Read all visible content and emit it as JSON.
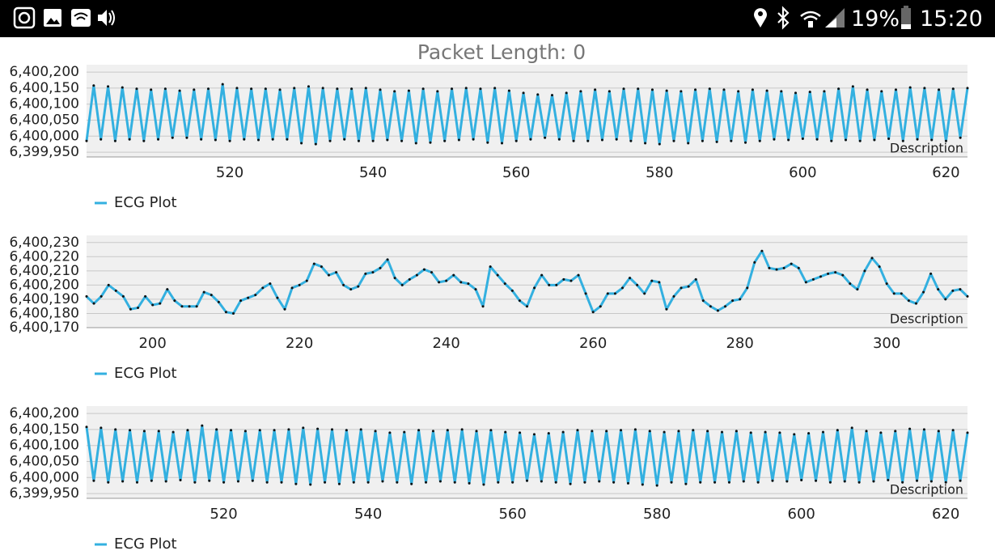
{
  "status_bar": {
    "battery": "19%",
    "time": "15:20"
  },
  "header": {
    "title": "Packet Length: 0"
  },
  "chart_data": [
    {
      "type": "line",
      "description": "Description",
      "x": [
        500,
        501,
        502,
        503,
        504,
        505,
        506,
        507,
        508,
        509,
        510,
        511,
        512,
        513,
        514,
        515,
        516,
        517,
        518,
        519,
        520,
        521,
        522,
        523,
        524,
        525,
        526,
        527,
        528,
        529,
        530,
        531,
        532,
        533,
        534,
        535,
        536,
        537,
        538,
        539,
        540,
        541,
        542,
        543,
        544,
        545,
        546,
        547,
        548,
        549,
        550,
        551,
        552,
        553,
        554,
        555,
        556,
        557,
        558,
        559,
        560,
        561,
        562,
        563,
        564,
        565,
        566,
        567,
        568,
        569,
        570,
        571,
        572,
        573,
        574,
        575,
        576,
        577,
        578,
        579,
        580,
        581,
        582,
        583,
        584,
        585,
        586,
        587,
        588,
        589,
        590,
        591,
        592,
        593,
        594,
        595,
        596,
        597,
        598,
        599,
        600,
        601,
        602,
        603,
        604,
        605,
        606,
        607,
        608,
        609,
        610,
        611,
        612,
        613,
        614,
        615,
        616,
        617,
        618,
        619,
        620,
        621,
        622,
        623
      ],
      "series": [
        {
          "name": "ECG Plot",
          "color": "#33b0e0",
          "values": [
            6399985,
            6400158,
            6399990,
            6400155,
            6399985,
            6400152,
            6399990,
            6400148,
            6399985,
            6400145,
            6399990,
            6400148,
            6399995,
            6400142,
            6399995,
            6400145,
            6399990,
            6400148,
            6399988,
            6400162,
            6399985,
            6400150,
            6399990,
            6400148,
            6399988,
            6400148,
            6399990,
            6400145,
            6399990,
            6400150,
            6399978,
            6400155,
            6399975,
            6400150,
            6399985,
            6400148,
            6399990,
            6400148,
            6399985,
            6400150,
            6399985,
            6400145,
            6399988,
            6400140,
            6399985,
            6400142,
            6399978,
            6400148,
            6399980,
            6400140,
            6399985,
            6400148,
            6399988,
            6400150,
            6399990,
            6400148,
            6399980,
            6400150,
            6399978,
            6400142,
            6399985,
            6400135,
            6399990,
            6400130,
            6399995,
            6400128,
            6399990,
            6400135,
            6399985,
            6400140,
            6399985,
            6400145,
            6399988,
            6400140,
            6399990,
            6400148,
            6399985,
            6400148,
            6399978,
            6400145,
            6399975,
            6400142,
            6399985,
            6400140,
            6399978,
            6400145,
            6399985,
            6400148,
            6399982,
            6400145,
            6399985,
            6400140,
            6399980,
            6400145,
            6399985,
            6400142,
            6399990,
            6400140,
            6399988,
            6400135,
            6399992,
            6400138,
            6399990,
            6400140,
            6399985,
            6400148,
            6399988,
            6400155,
            6399985,
            6400145,
            6399988,
            6400140,
            6399992,
            6400145,
            6399985,
            6400152,
            6399990,
            6400150,
            6399988,
            6400145,
            6399985,
            6400148,
            6399995,
            6400150
          ]
        }
      ],
      "xlim": [
        500,
        623
      ],
      "xticks": [
        520,
        540,
        560,
        580,
        600,
        620
      ],
      "ylim": [
        6399935,
        6400223
      ],
      "yticks": [
        {
          "value": 6399950,
          "label": "6,399,950"
        },
        {
          "value": 6400000,
          "label": "6,400,000"
        },
        {
          "value": 6400050,
          "label": "6,400,050"
        },
        {
          "value": 6400100,
          "label": "6,400,100"
        },
        {
          "value": 6400150,
          "label": "6,400,150"
        },
        {
          "value": 6400200,
          "label": "6,400,200"
        }
      ],
      "grid": true
    },
    {
      "type": "line",
      "description": "Description",
      "x": [
        191,
        192,
        193,
        194,
        195,
        196,
        197,
        198,
        199,
        200,
        201,
        202,
        203,
        204,
        205,
        206,
        207,
        208,
        209,
        210,
        211,
        212,
        213,
        214,
        215,
        216,
        217,
        218,
        219,
        220,
        221,
        222,
        223,
        224,
        225,
        226,
        227,
        228,
        229,
        230,
        231,
        232,
        233,
        234,
        235,
        236,
        237,
        238,
        239,
        240,
        241,
        242,
        243,
        244,
        245,
        246,
        247,
        248,
        249,
        250,
        251,
        252,
        253,
        254,
        255,
        256,
        257,
        258,
        259,
        260,
        261,
        262,
        263,
        264,
        265,
        266,
        267,
        268,
        269,
        270,
        271,
        272,
        273,
        274,
        275,
        276,
        277,
        278,
        279,
        280,
        281,
        282,
        283,
        284,
        285,
        286,
        287,
        288,
        289,
        290,
        291,
        292,
        293,
        294,
        295,
        296,
        297,
        298,
        299,
        300,
        301,
        302,
        303,
        304,
        305,
        306,
        307,
        308,
        309,
        310,
        311
      ],
      "series": [
        {
          "name": "ECG Plot",
          "color": "#33b0e0",
          "values": [
            6400192,
            6400187,
            6400192,
            6400200,
            6400196,
            6400192,
            6400183,
            6400184,
            6400192,
            6400186,
            6400187,
            6400197,
            6400189,
            6400185,
            6400185,
            6400185,
            6400195,
            6400193,
            6400188,
            6400181,
            6400180,
            6400189,
            6400191,
            6400193,
            6400198,
            6400201,
            6400191,
            6400183,
            6400198,
            6400200,
            6400203,
            6400215,
            6400213,
            6400207,
            6400209,
            6400200,
            6400197,
            6400199,
            6400208,
            6400209,
            6400212,
            6400218,
            6400205,
            6400200,
            6400204,
            6400207,
            6400211,
            6400209,
            6400202,
            6400203,
            6400207,
            6400202,
            6400201,
            6400197,
            6400185,
            6400213,
            6400207,
            6400201,
            6400196,
            6400189,
            6400185,
            6400198,
            6400207,
            6400200,
            6400200,
            6400204,
            6400203,
            6400207,
            6400194,
            6400181,
            6400185,
            6400194,
            6400194,
            6400198,
            6400205,
            6400200,
            6400194,
            6400203,
            6400202,
            6400183,
            6400192,
            6400198,
            6400199,
            6400204,
            6400189,
            6400185,
            6400182,
            6400185,
            6400189,
            6400190,
            6400198,
            6400216,
            6400224,
            6400212,
            6400211,
            6400212,
            6400215,
            6400212,
            6400202,
            6400204,
            6400206,
            6400208,
            6400209,
            6400207,
            6400201,
            6400197,
            6400210,
            6400219,
            6400213,
            6400201,
            6400194,
            6400194,
            6400189,
            6400187,
            6400195,
            6400208,
            6400197,
            6400190,
            6400196,
            6400197,
            6400192
          ]
        }
      ],
      "xlim": [
        191,
        311
      ],
      "xticks": [
        200,
        220,
        240,
        260,
        280,
        300
      ],
      "ylim": [
        6400170,
        6400235
      ],
      "yticks": [
        {
          "value": 6400170,
          "label": "6,400,170"
        },
        {
          "value": 6400180,
          "label": "6,400,180"
        },
        {
          "value": 6400190,
          "label": "6,400,190"
        },
        {
          "value": 6400200,
          "label": "6,400,200"
        },
        {
          "value": 6400210,
          "label": "6,400,210"
        },
        {
          "value": 6400220,
          "label": "6,400,220"
        },
        {
          "value": 6400230,
          "label": "6,400,230"
        }
      ],
      "grid": true
    },
    {
      "type": "line",
      "description": "Description",
      "x": [
        501,
        502,
        503,
        504,
        505,
        506,
        507,
        508,
        509,
        510,
        511,
        512,
        513,
        514,
        515,
        516,
        517,
        518,
        519,
        520,
        521,
        522,
        523,
        524,
        525,
        526,
        527,
        528,
        529,
        530,
        531,
        532,
        533,
        534,
        535,
        536,
        537,
        538,
        539,
        540,
        541,
        542,
        543,
        544,
        545,
        546,
        547,
        548,
        549,
        550,
        551,
        552,
        553,
        554,
        555,
        556,
        557,
        558,
        559,
        560,
        561,
        562,
        563,
        564,
        565,
        566,
        567,
        568,
        569,
        570,
        571,
        572,
        573,
        574,
        575,
        576,
        577,
        578,
        579,
        580,
        581,
        582,
        583,
        584,
        585,
        586,
        587,
        588,
        589,
        590,
        591,
        592,
        593,
        594,
        595,
        596,
        597,
        598,
        599,
        600,
        601,
        602,
        603,
        604,
        605,
        606,
        607,
        608,
        609,
        610,
        611,
        612,
        613,
        614,
        615,
        616,
        617,
        618,
        619,
        620,
        621,
        622,
        623
      ],
      "series": [
        {
          "name": "ECG Plot",
          "color": "#33b0e0",
          "values": [
            6400158,
            6399990,
            6400155,
            6399985,
            6400150,
            6399988,
            6400148,
            6399985,
            6400145,
            6399990,
            6400145,
            6399988,
            6400142,
            6399992,
            6400148,
            6399985,
            6400162,
            6399990,
            6400150,
            6399985,
            6400148,
            6399988,
            6400145,
            6399990,
            6400148,
            6399985,
            6400148,
            6399985,
            6400150,
            6399980,
            6400155,
            6399978,
            6400152,
            6399985,
            6400150,
            6399980,
            6400148,
            6399985,
            6400150,
            6399985,
            6400145,
            6399988,
            6400140,
            6399985,
            6400142,
            6399980,
            6400148,
            6399985,
            6400145,
            6399988,
            6400148,
            6399985,
            6400150,
            6399982,
            6400145,
            6399978,
            6400148,
            6399985,
            6400142,
            6399985,
            6400140,
            6399990,
            6400135,
            6399988,
            6400138,
            6399985,
            6400142,
            6399980,
            6400148,
            6399985,
            6400145,
            6399988,
            6400145,
            6399985,
            6400148,
            6399982,
            6400150,
            6399978,
            6400145,
            6399975,
            6400142,
            6399985,
            6400145,
            6399980,
            6400148,
            6399985,
            6400145,
            6399985,
            6400142,
            6399985,
            6400145,
            6399988,
            6400140,
            6399985,
            6400142,
            6399990,
            6400140,
            6399988,
            6400135,
            6399992,
            6400138,
            6399990,
            6400142,
            6399985,
            6400148,
            6399988,
            6400155,
            6399985,
            6400145,
            6399988,
            6400140,
            6399992,
            6400145,
            6399985,
            6400152,
            6399990,
            6400150,
            6399988,
            6400145,
            6399985,
            6400148,
            6399990,
            6400140
          ]
        }
      ],
      "xlim": [
        501,
        623
      ],
      "xticks": [
        520,
        540,
        560,
        580,
        600,
        620
      ],
      "ylim": [
        6399935,
        6400223
      ],
      "yticks": [
        {
          "value": 6399950,
          "label": "6,399,950"
        },
        {
          "value": 6400000,
          "label": "6,400,000"
        },
        {
          "value": 6400050,
          "label": "6,400,050"
        },
        {
          "value": 6400100,
          "label": "6,400,100"
        },
        {
          "value": 6400150,
          "label": "6,400,150"
        },
        {
          "value": 6400200,
          "label": "6,400,200"
        }
      ],
      "grid": true
    }
  ]
}
